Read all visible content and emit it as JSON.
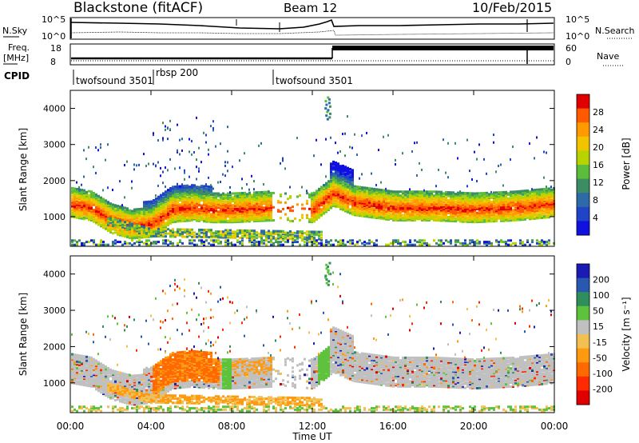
{
  "header": {
    "station": "Blackstone (fitACF)",
    "beam": "Beam 12",
    "date": "10/Feb/2015"
  },
  "noise_panel": {
    "left_label": "N.Sky",
    "right_label": "N.Search",
    "left_ticks": [
      "10^5",
      "10^0"
    ],
    "right_ticks": [
      "10^5",
      "10^0"
    ]
  },
  "freq_panel": {
    "left_label_line1": "Freq.",
    "left_label_line2": "[MHz]",
    "left_ticks": [
      "18",
      "8"
    ],
    "right_label": "Nave",
    "right_ticks": [
      "60",
      "0"
    ]
  },
  "cpid_panel": {
    "label": "CPID",
    "segments": [
      {
        "name": "twofsound 3501",
        "start_hour": 0.0
      },
      {
        "name": "rbsp 200",
        "start_hour": 4.0
      },
      {
        "name": "twofsound 3501",
        "start_hour": 10.0
      }
    ]
  },
  "power_panel": {
    "ylabel": "Slant Range [km]",
    "colorbar_label": "Power [dB]",
    "colorbar_ticks": [
      "28",
      "24",
      "20",
      "16",
      "12",
      "8",
      "4"
    ],
    "colorbar_colors": [
      "#e00000",
      "#ff5a00",
      "#ff9a00",
      "#f2c400",
      "#b8d400",
      "#5cbc3c",
      "#3c8c64",
      "#2f6aa8",
      "#1f44c8",
      "#1010e0"
    ]
  },
  "velocity_panel": {
    "ylabel": "Slant Range [km]",
    "colorbar_label": "Velocity [m s⁻¹]",
    "colorbar_ticks": [
      "200",
      "100",
      "50",
      "15",
      "-15",
      "-50",
      "-100",
      "-200"
    ],
    "colorbar_colors": [
      "#1a1ab4",
      "#2a58b0",
      "#2f8f5c",
      "#5ec23c",
      "#c0c0c0",
      "#f2c050",
      "#ff9a10",
      "#ff6a00",
      "#ff2a00",
      "#e00000"
    ]
  },
  "x_axis": {
    "label": "Time UT",
    "ticks": [
      "00:00",
      "04:00",
      "08:00",
      "12:00",
      "16:00",
      "20:00",
      "00:00"
    ]
  },
  "y_axis_ticks": [
    "1000",
    "2000",
    "3000",
    "4000"
  ],
  "chart_data": {
    "type": "heatmap",
    "title": "Blackstone (fitACF)   Beam 12   10/Feb/2015",
    "x_range_hours": [
      0,
      24
    ],
    "y_range_km": [
      180,
      4500
    ],
    "features": [
      {
        "name": "main echo band (approx.)",
        "x": [
          0,
          1,
          2,
          3,
          4,
          5,
          6,
          7,
          8,
          10,
          12,
          13,
          14,
          16,
          18,
          20,
          22,
          24
        ],
        "y": [
          1350,
          1250,
          900,
          750,
          800,
          1200,
          1250,
          1200,
          1200,
          1250,
          1200,
          1650,
          1400,
          1250,
          1250,
          1200,
          1250,
          1350
        ]
      }
    ]
  }
}
